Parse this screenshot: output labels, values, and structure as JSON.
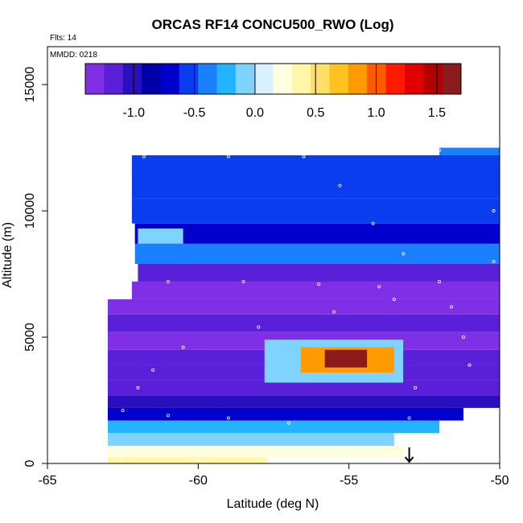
{
  "chart_data": {
    "type": "heatmap",
    "title": "ORCAS RF14 CONCU500_RWO (Log)",
    "flights_note": "Flts: 14",
    "date_note": "MMDD: 0218",
    "xlabel": "Latitude (deg N)",
    "ylabel": "Altitude (m)",
    "xlim": [
      -65,
      -50
    ],
    "ylim": [
      0,
      16500
    ],
    "xticks": [
      "-65",
      "-60",
      "-55",
      "-50"
    ],
    "xtick_values": [
      -65,
      -60,
      -55,
      -50
    ],
    "yticks": [
      "0",
      "5000",
      "10000",
      "15000"
    ],
    "ytick_values": [
      0,
      5000,
      10000,
      15000
    ],
    "colorbar": {
      "range": [
        -1.4,
        1.7
      ],
      "ticks": [
        "-1.0",
        "-0.5",
        "0.0",
        "0.5",
        "1.0",
        "1.5"
      ],
      "tick_values": [
        -1.0,
        -0.5,
        0.0,
        0.5,
        1.0,
        1.5
      ],
      "colors": [
        "#7f2fe6",
        "#5a1fd8",
        "#2a0fbf",
        "#0000a8",
        "#0000cd",
        "#0a3cf0",
        "#1b80ff",
        "#22b4ff",
        "#7fd4ff",
        "#d8f0ff",
        "#ffffe0",
        "#fff6a8",
        "#ffe066",
        "#ffc21f",
        "#ff9a00",
        "#ff5a00",
        "#ff1a00",
        "#e00000",
        "#b00000",
        "#8b1a1a"
      ]
    },
    "layers": [
      {
        "alt": [
          0,
          250
        ],
        "lat": [
          -63.0,
          -57.7
        ],
        "value": 0.35
      },
      {
        "alt": [
          250,
          700
        ],
        "lat": [
          -63.0,
          -53.2
        ],
        "value": 0.28
      },
      {
        "alt": [
          700,
          1200
        ],
        "lat": [
          -63.0,
          -53.5
        ],
        "value": -0.05
      },
      {
        "alt": [
          1200,
          1700
        ],
        "lat": [
          -63.0,
          -52.0
        ],
        "value": -0.3
      },
      {
        "alt": [
          1700,
          2200
        ],
        "lat": [
          -63.0,
          -51.2
        ],
        "value": -0.7
      },
      {
        "alt": [
          2200,
          2700
        ],
        "lat": [
          -63.0,
          -50.0
        ],
        "value": -1.0
      },
      {
        "alt": [
          2700,
          3300
        ],
        "lat": [
          -63.0,
          -50.0
        ],
        "value": -1.2
      },
      {
        "alt": [
          3300,
          3900
        ],
        "lat": [
          -63.0,
          -50.0
        ],
        "value": -1.15
      },
      {
        "alt": [
          3900,
          4500
        ],
        "lat": [
          -63.0,
          -50.0
        ],
        "value": -1.1
      },
      {
        "alt": [
          4500,
          5200
        ],
        "lat": [
          -63.0,
          -50.0
        ],
        "value": -1.3
      },
      {
        "alt": [
          5200,
          5900
        ],
        "lat": [
          -63.0,
          -50.0
        ],
        "value": -1.1
      },
      {
        "alt": [
          5900,
          6500
        ],
        "lat": [
          -63.0,
          -50.0
        ],
        "value": -1.25
      },
      {
        "alt": [
          6500,
          7200
        ],
        "lat": [
          -62.2,
          -50.0
        ],
        "value": -1.3
      },
      {
        "alt": [
          7200,
          7900
        ],
        "lat": [
          -62.0,
          -50.0
        ],
        "value": -1.1
      },
      {
        "alt": [
          7900,
          8700
        ],
        "lat": [
          -62.1,
          -50.0
        ],
        "value": -0.45
      },
      {
        "alt": [
          8700,
          9500
        ],
        "lat": [
          -62.1,
          -50.0
        ],
        "value": -0.75
      },
      {
        "alt": [
          9500,
          10500
        ],
        "lat": [
          -62.2,
          -50.0
        ],
        "value": -0.6
      },
      {
        "alt": [
          10500,
          12200
        ],
        "lat": [
          -62.2,
          -50.0
        ],
        "value": -0.5
      },
      {
        "alt": [
          12200,
          12500
        ],
        "lat": [
          -52.0,
          -50.0
        ],
        "value": -0.45
      }
    ],
    "features": [
      {
        "alt": [
          3600,
          4600
        ],
        "lat": [
          -56.6,
          -53.5
        ],
        "value": 0.8
      },
      {
        "alt": [
          3800,
          4500
        ],
        "lat": [
          -55.8,
          -54.4
        ],
        "value": 1.55
      },
      {
        "alt": [
          3200,
          4900
        ],
        "lat": [
          -57.8,
          -53.2
        ],
        "value": -0.15
      },
      {
        "alt": [
          8700,
          9300
        ],
        "lat": [
          -62.0,
          -60.5
        ],
        "value": -0.05
      }
    ],
    "flight_track": [
      [
        -62.5,
        200
      ],
      [
        -60.0,
        150
      ],
      [
        -58.0,
        400
      ],
      [
        -55.2,
        420
      ],
      [
        -53.5,
        450
      ],
      [
        -53.0,
        1800
      ],
      [
        -52.8,
        3000
      ],
      [
        -51.0,
        3900
      ],
      [
        -51.2,
        5000
      ],
      [
        -51.6,
        6200
      ],
      [
        -52.0,
        7200
      ],
      [
        -53.2,
        8300
      ],
      [
        -54.2,
        9500
      ],
      [
        -55.3,
        11000
      ],
      [
        -56.5,
        12150
      ],
      [
        -59.0,
        12150
      ],
      [
        -61.8,
        12150
      ],
      [
        -61.0,
        7200
      ],
      [
        -58.5,
        7200
      ],
      [
        -56.0,
        7100
      ],
      [
        -54.0,
        7000
      ],
      [
        -53.5,
        6500
      ],
      [
        -55.5,
        6000
      ],
      [
        -58.0,
        5400
      ],
      [
        -60.5,
        4600
      ],
      [
        -61.5,
        3700
      ],
      [
        -62.0,
        3000
      ],
      [
        -62.5,
        2100
      ],
      [
        -61.0,
        1900
      ],
      [
        -59.0,
        1800
      ],
      [
        -57.0,
        1600
      ],
      [
        -52.0,
        12400
      ],
      [
        -50.2,
        10000
      ],
      [
        -50.2,
        8000
      ]
    ],
    "arrow_at_lat": -53.0
  }
}
